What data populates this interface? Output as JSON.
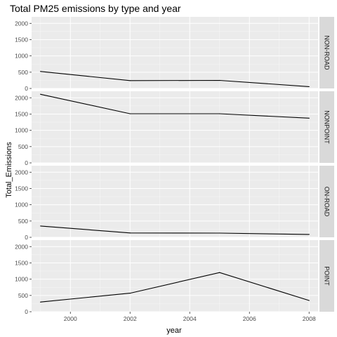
{
  "chart_data": {
    "type": "line",
    "title": "Total PM25 emissions by type and year",
    "xlabel": "year",
    "ylabel": "Total_Emissions",
    "x_ticks": [
      2000,
      2002,
      2004,
      2006,
      2008
    ],
    "y_ticks": [
      0,
      500,
      1000,
      1500,
      2000
    ],
    "xlim": [
      1998.7,
      2008.3
    ],
    "ylim": [
      0,
      2200
    ],
    "grid": true,
    "facets": [
      {
        "name": "NON-ROAD",
        "x": [
          1999,
          2002,
          2005,
          2008
        ],
        "values": [
          522.9,
          240.8,
          248.9,
          55.8
        ]
      },
      {
        "name": "NONPOINT",
        "x": [
          1999,
          2002,
          2005,
          2008
        ],
        "values": [
          2107.6,
          1509.5,
          1509.5,
          1373.2
        ]
      },
      {
        "name": "ON-ROAD",
        "x": [
          1999,
          2002,
          2005,
          2008
        ],
        "values": [
          346.8,
          134.3,
          130.4,
          88.3
        ]
      },
      {
        "name": "POINT",
        "x": [
          1999,
          2002,
          2005,
          2008
        ],
        "values": [
          296.8,
          569.3,
          1202.5,
          344.98
        ]
      }
    ],
    "colors": {
      "panel_background": "#ebebeb",
      "grid_major": "#ffffff",
      "strip_background": "#d9d9d9",
      "line": "#000000"
    }
  }
}
